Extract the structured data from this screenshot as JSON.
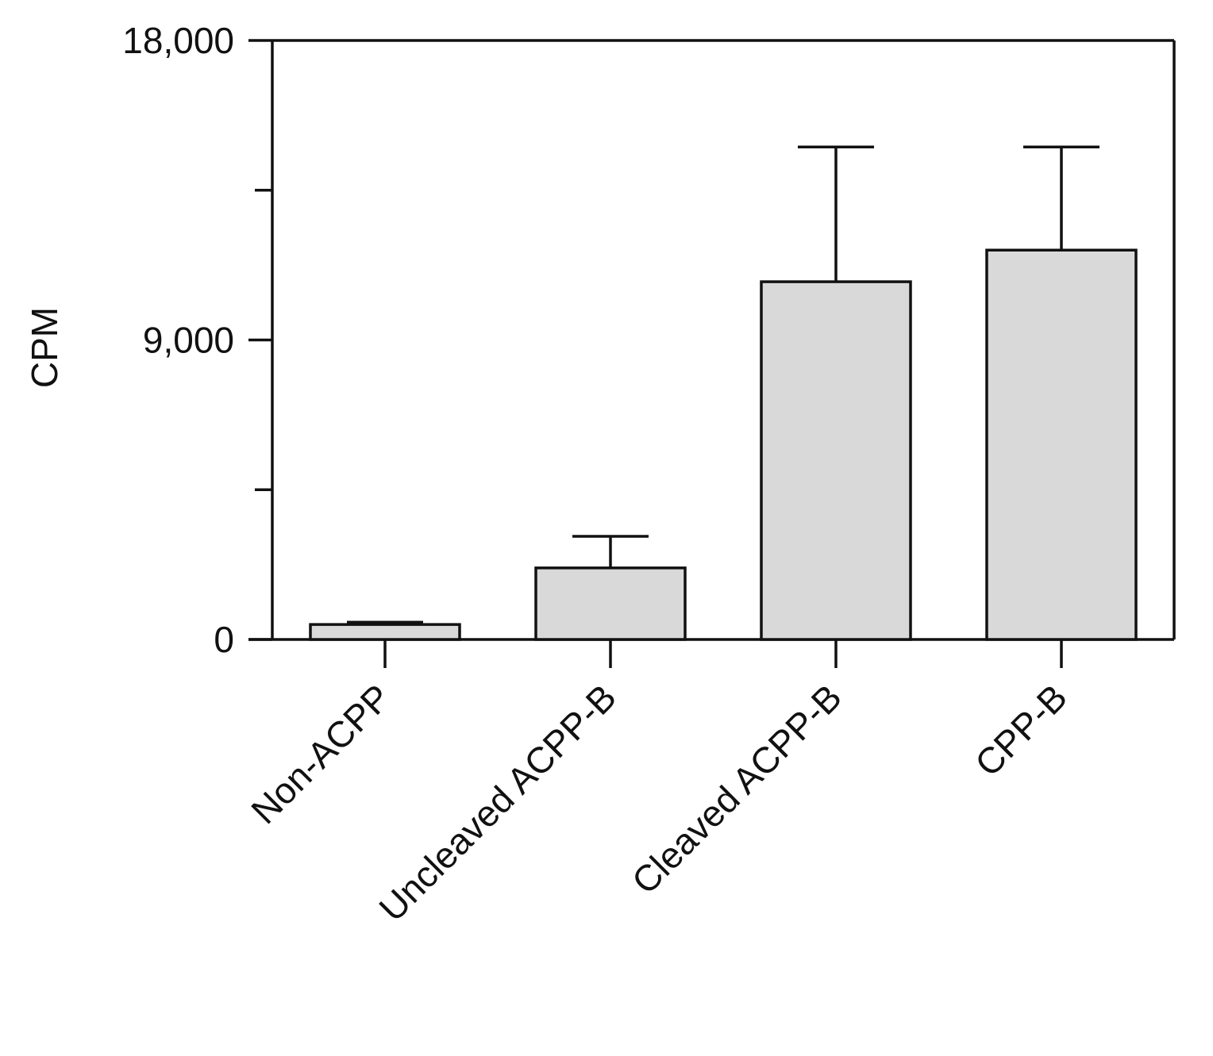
{
  "chart_data": {
    "type": "bar",
    "categories": [
      "Non-ACPP",
      "Uncleaved ACPP-B",
      "Cleaved ACPP-B",
      "CPP-B"
    ],
    "values": [
      450,
      2150,
      10750,
      11700
    ],
    "errors": [
      70,
      950,
      4050,
      3100
    ],
    "ylabel": "CPM",
    "xlabel": "",
    "title": "",
    "ylim": [
      0,
      18000
    ],
    "y_tick_labels": [
      "0",
      "9,000",
      "18,000"
    ],
    "y_tick_values": [
      0,
      9000,
      18000
    ],
    "y_minor_ticks": [
      4500,
      13500
    ],
    "grid": false,
    "bar_color": "#d9d9d9",
    "line_color": "#111111"
  }
}
